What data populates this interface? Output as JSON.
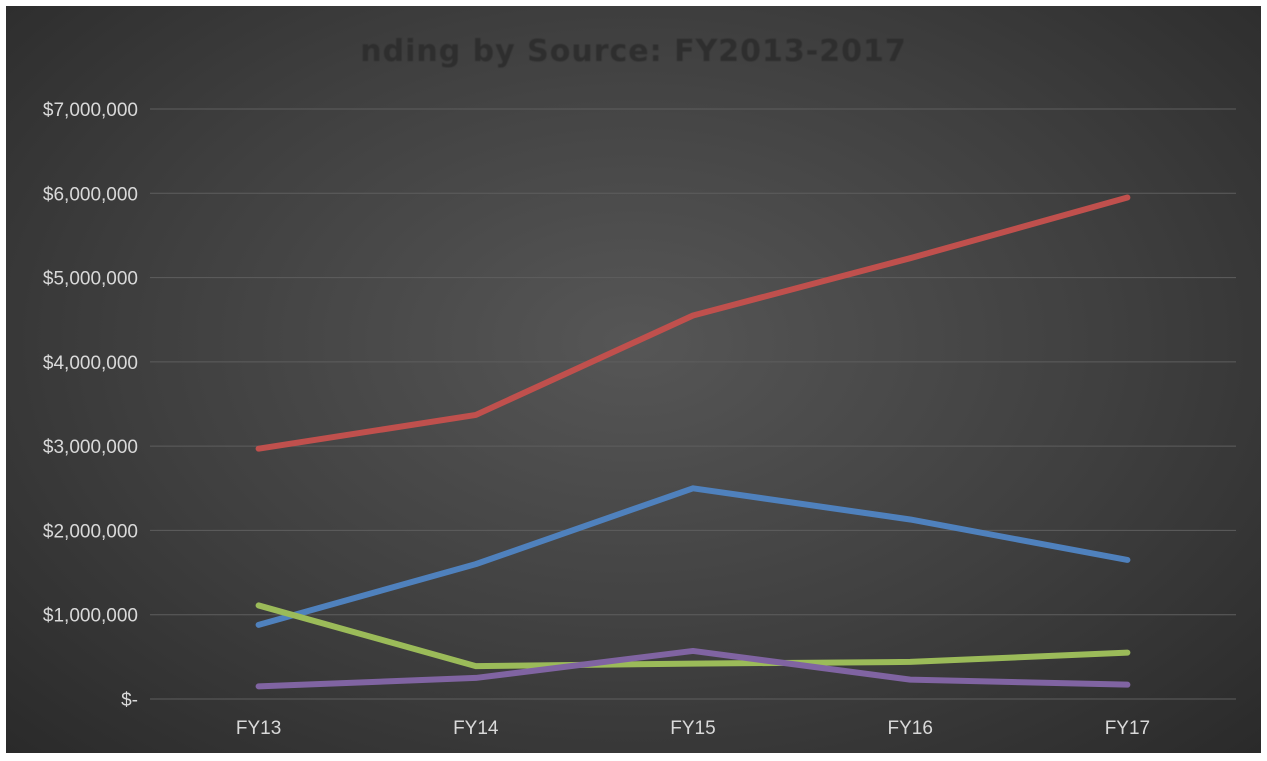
{
  "chart_data": {
    "type": "line",
    "title": "nding by Source: FY2013-2017",
    "xlabel": "",
    "ylabel": "",
    "categories": [
      "FY13",
      "FY14",
      "FY15",
      "FY16",
      "FY17"
    ],
    "ylim": [
      0,
      7000000
    ],
    "y_ticks": [
      0,
      1000000,
      2000000,
      3000000,
      4000000,
      5000000,
      6000000,
      7000000
    ],
    "y_tick_labels": [
      "$-",
      "$1,000,000",
      "$2,000,000",
      "$3,000,000",
      "$4,000,000",
      "$5,000,000",
      "$6,000,000",
      "$7,000,000"
    ],
    "grid": true,
    "legend": "none",
    "series": [
      {
        "color": "#c0504d",
        "values": [
          2970000,
          3370000,
          4550000,
          5230000,
          5950000
        ]
      },
      {
        "color": "#4f81bd",
        "values": [
          880000,
          1600000,
          2500000,
          2130000,
          1650000
        ]
      },
      {
        "color": "#9bbb59",
        "values": [
          1110000,
          390000,
          420000,
          440000,
          550000
        ]
      },
      {
        "color": "#8064a2",
        "values": [
          150000,
          250000,
          570000,
          230000,
          170000
        ]
      }
    ]
  }
}
